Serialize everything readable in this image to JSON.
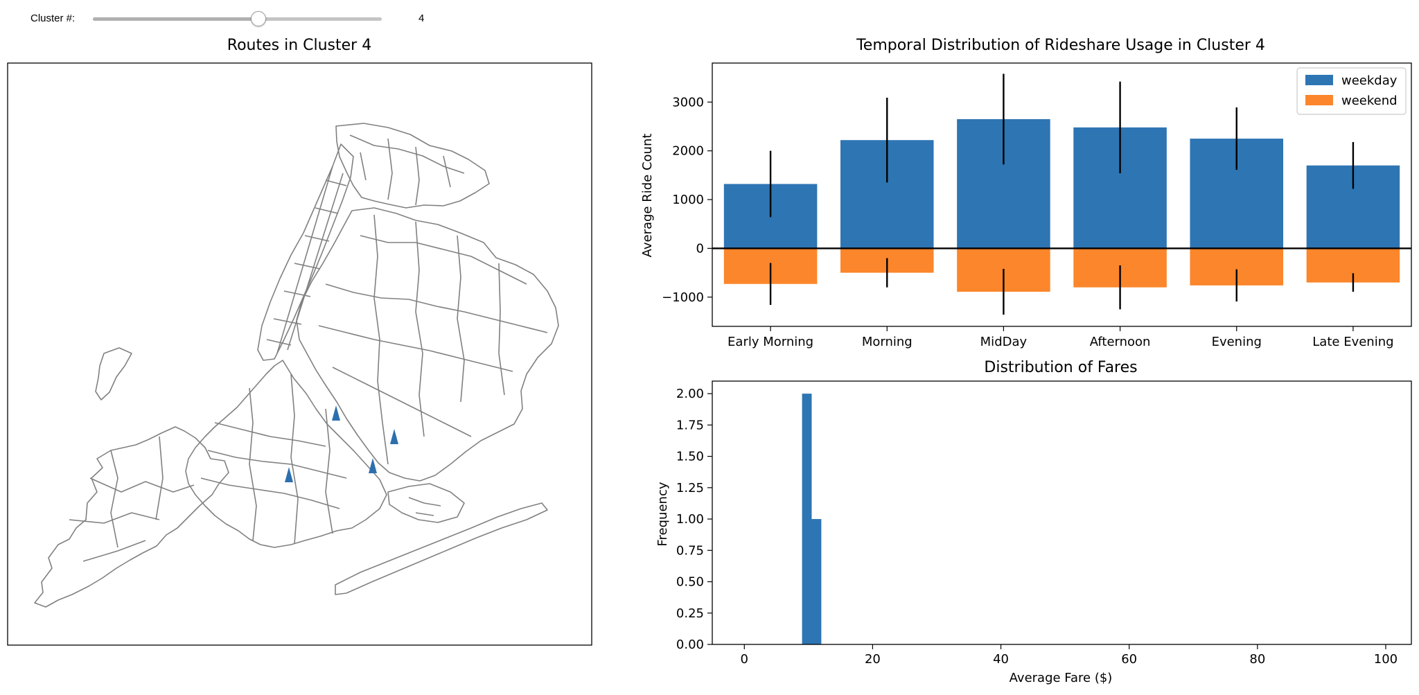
{
  "slider": {
    "label": "Cluster #:",
    "value": 4,
    "value_text": "4",
    "fill_fraction": 0.57
  },
  "map": {
    "title": "Routes in Cluster 4",
    "marker_color": "#2d6fae",
    "marker_count": 4
  },
  "chart_data": [
    {
      "type": "bar",
      "title": "Temporal Distribution of Rideshare Usage in Cluster 4",
      "xlabel": "",
      "ylabel": "Average Ride Count",
      "categories": [
        "Early Morning",
        "Morning",
        "MidDay",
        "Afternoon",
        "Evening",
        "Late Evening"
      ],
      "series": [
        {
          "name": "weekday",
          "color": "#2e75b3",
          "values": [
            1320,
            2220,
            2650,
            2480,
            2250,
            1700
          ],
          "error": [
            680,
            870,
            930,
            940,
            640,
            480
          ]
        },
        {
          "name": "weekend",
          "color": "#fb862b",
          "values": [
            -730,
            -500,
            -890,
            -800,
            -760,
            -700
          ],
          "error": [
            430,
            300,
            470,
            450,
            330,
            190
          ]
        }
      ],
      "ylim": [
        -1600,
        3800
      ],
      "yticks": [
        -1000,
        0,
        1000,
        2000,
        3000
      ],
      "ytick_labels": [
        "−1000",
        "0",
        "1000",
        "2000",
        "3000"
      ],
      "legend_position": "top-right"
    },
    {
      "type": "histogram",
      "title": "Distribution of Fares",
      "xlabel": "Average Fare ($)",
      "ylabel": "Frequency",
      "bins": [
        {
          "x0": 9.0,
          "x1": 10.5,
          "count": 2
        },
        {
          "x0": 10.5,
          "x1": 12.0,
          "count": 1
        }
      ],
      "xlim": [
        -5,
        104
      ],
      "ylim": [
        0,
        2.1
      ],
      "xticks": [
        0,
        20,
        40,
        60,
        80,
        100
      ],
      "xtick_labels": [
        "0",
        "20",
        "40",
        "60",
        "80",
        "100"
      ],
      "yticks": [
        0,
        0.25,
        0.5,
        0.75,
        1.0,
        1.25,
        1.5,
        1.75,
        2.0
      ],
      "ytick_labels": [
        "0.00",
        "0.25",
        "0.50",
        "0.75",
        "1.00",
        "1.25",
        "1.50",
        "1.75",
        "2.00"
      ],
      "color": "#2e75b3"
    }
  ]
}
